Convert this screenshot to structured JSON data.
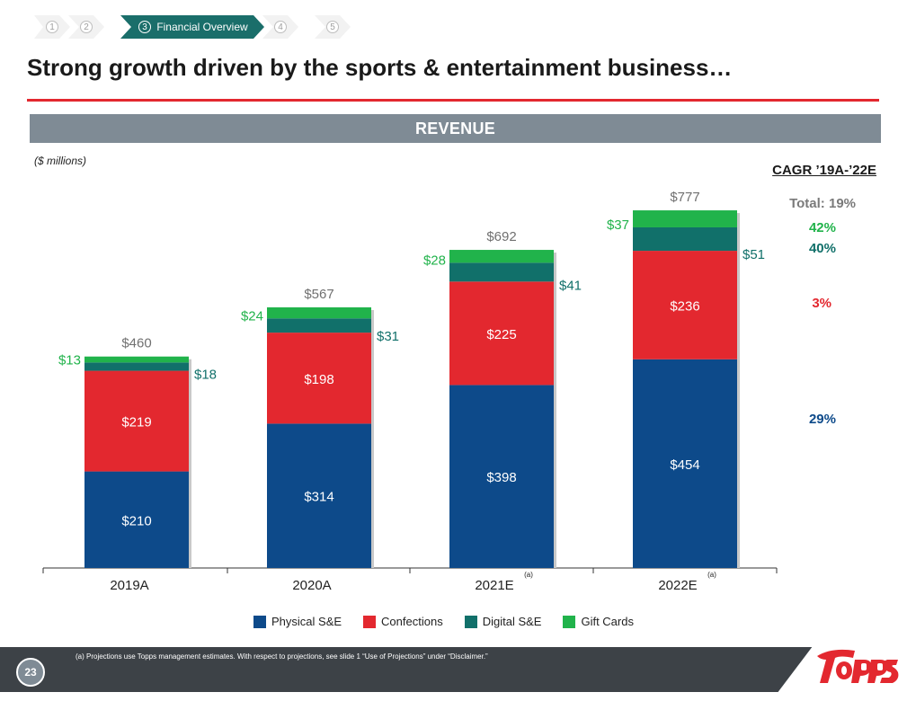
{
  "nav": {
    "steps": [
      {
        "num": "1",
        "label": "",
        "active": false
      },
      {
        "num": "2",
        "label": "",
        "active": false
      },
      {
        "num": "3",
        "label": "Financial Overview",
        "active": true
      },
      {
        "num": "4",
        "label": "",
        "active": false
      },
      {
        "num": "5",
        "label": "",
        "active": false
      }
    ]
  },
  "title": "Strong growth driven by the sports & entertainment business…",
  "banner": "REVENUE",
  "units": "($ millions)",
  "cagr": {
    "title": "CAGR ’19A-’22E",
    "total": "Total: 19%",
    "gift_cards": "42%",
    "digital": "40%",
    "confections": "3%",
    "physical": "29%"
  },
  "footnote": "(a)     Projections use Topps management estimates. With respect to projections, see slide 1 “Use of Projections” under “Disclaimer.”",
  "page_number": "23",
  "logo_text": "Topps",
  "colors": {
    "physical": "#0d4a8a",
    "confections": "#e3282f",
    "digital": "#11706a",
    "gift": "#21b34b",
    "accent": "#e3282f",
    "tab_active": "#1a6e6a",
    "banner": "#7f8b95"
  },
  "chart_data": {
    "type": "bar",
    "stacked": true,
    "categories": [
      "2019A",
      "2020A",
      "2021E",
      "2022E"
    ],
    "category_notes": [
      "",
      "",
      "(a)",
      "(a)"
    ],
    "series": [
      {
        "name": "Physical S&E",
        "values": [
          210,
          314,
          398,
          454
        ],
        "color": "#0d4a8a"
      },
      {
        "name": "Confections",
        "values": [
          219,
          198,
          225,
          236
        ],
        "color": "#e3282f"
      },
      {
        "name": "Digital S&E",
        "values": [
          18,
          31,
          41,
          51
        ],
        "color": "#11706a"
      },
      {
        "name": "Gift Cards",
        "values": [
          13,
          24,
          28,
          37
        ],
        "color": "#21b34b"
      }
    ],
    "totals": [
      460,
      567,
      692,
      777
    ],
    "value_prefix": "$",
    "ylim": [
      0,
      800
    ],
    "legend_position": "bottom",
    "grid": false
  }
}
